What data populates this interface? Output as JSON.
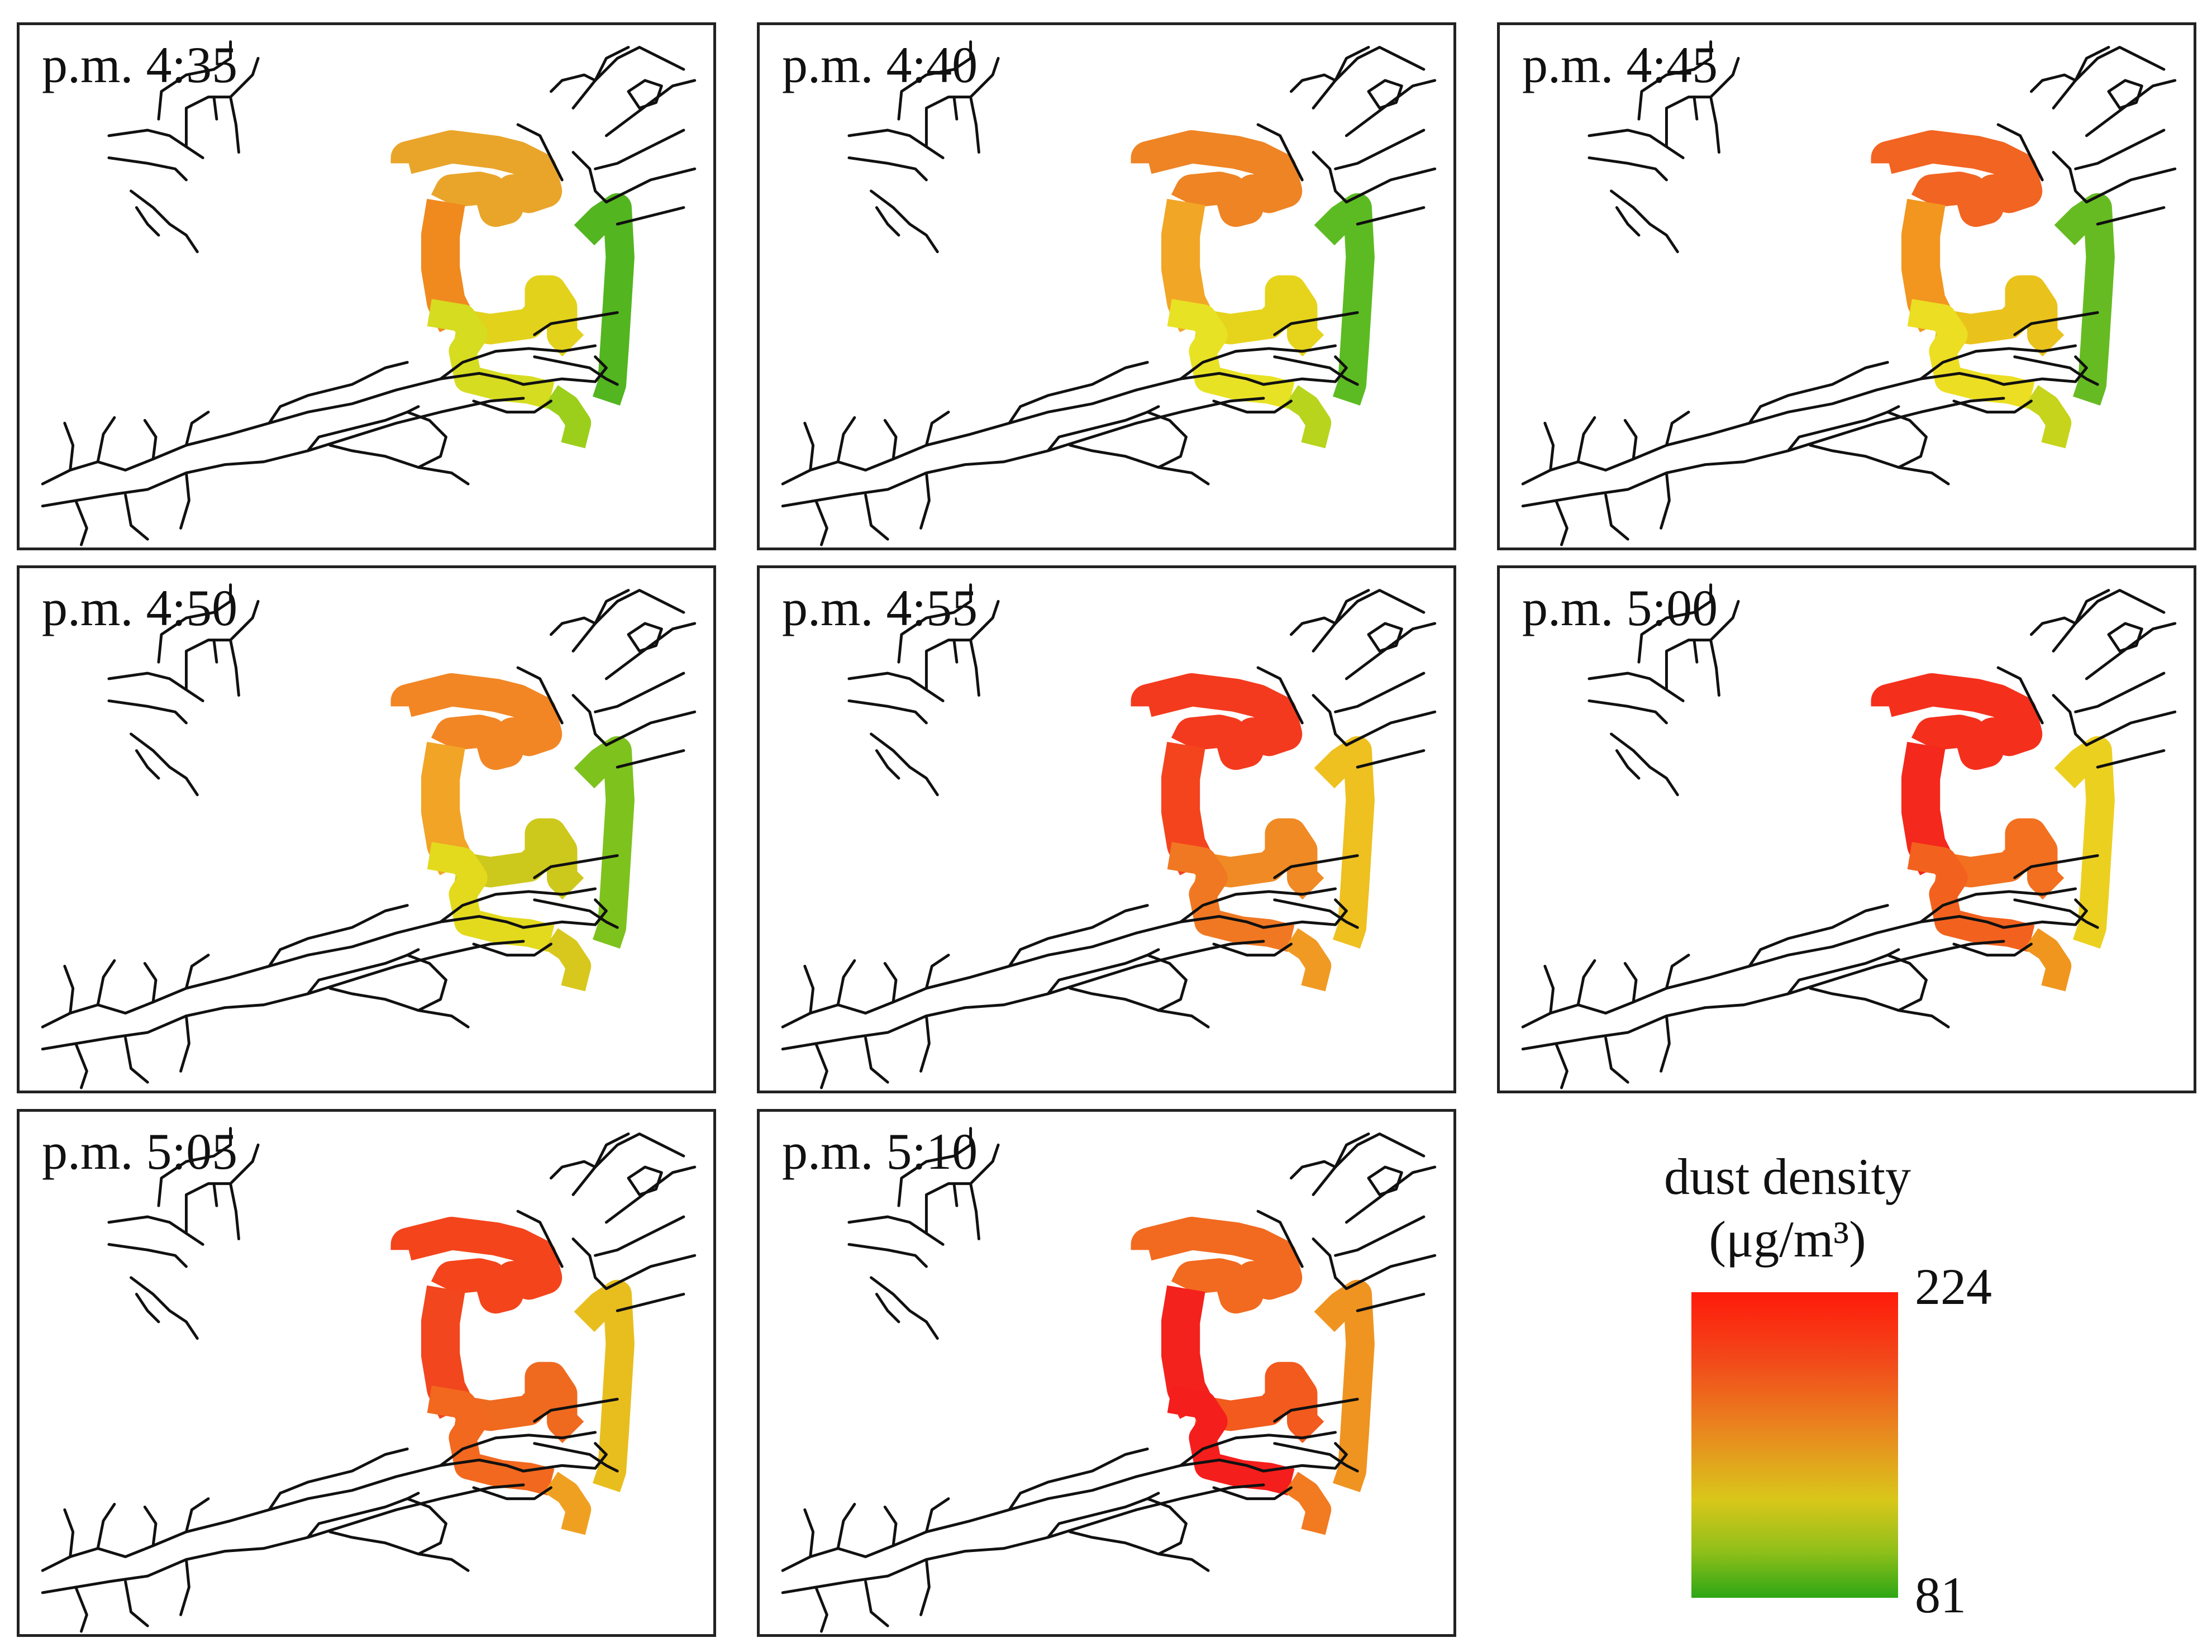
{
  "panels": [
    {
      "time": "p.m. 4:35",
      "colors": {
        "top": "#e9a52a",
        "left": "#f08a1f",
        "mid": "#e2d21c",
        "lowl": "#d6dc20",
        "lowr": "#9ccf1c",
        "right": "#53b520"
      }
    },
    {
      "time": "p.m. 4:40",
      "colors": {
        "top": "#ee8424",
        "left": "#f2a626",
        "mid": "#e6d41c",
        "lowl": "#e8e224",
        "lowr": "#b8d41c",
        "right": "#5cbb22"
      }
    },
    {
      "time": "p.m. 4:45",
      "colors": {
        "top": "#f26422",
        "left": "#f2961f",
        "mid": "#eac21c",
        "lowl": "#ecde22",
        "lowr": "#c6d41c",
        "right": "#66bb22"
      }
    },
    {
      "time": "p.m. 4:50",
      "colors": {
        "top": "#f28624",
        "left": "#f2a426",
        "mid": "#cdc81c",
        "lowl": "#e3da1e",
        "lowr": "#d8c81e",
        "right": "#7ec21e"
      }
    },
    {
      "time": "p.m. 4:55",
      "colors": {
        "top": "#f43a1e",
        "left": "#f4441e",
        "mid": "#f08a24",
        "lowl": "#f07822",
        "lowr": "#f09a24",
        "right": "#eec020"
      }
    },
    {
      "time": "p.m. 5:00",
      "colors": {
        "top": "#f4301c",
        "left": "#f4281c",
        "mid": "#f2701f",
        "lowl": "#f2621e",
        "lowr": "#f0961f",
        "right": "#ecd020"
      }
    },
    {
      "time": "p.m. 5:05",
      "colors": {
        "top": "#f4441c",
        "left": "#f2461e",
        "mid": "#ef6a1f",
        "lowl": "#f2681e",
        "lowr": "#f0a021",
        "right": "#e8be1e"
      }
    },
    {
      "time": "p.m. 5:10",
      "colors": {
        "top": "#f26a1f",
        "left": "#f4221c",
        "mid": "#f25a1e",
        "lowl": "#f41e1c",
        "lowr": "#f27a20",
        "right": "#ef9420"
      }
    }
  ],
  "legend": {
    "title_line1": "dust density",
    "title_line2": "(μg/m³)",
    "max": "224",
    "min": "81",
    "colors": {
      "max": "#ff1a0a",
      "mid": "#d9c71a",
      "min": "#2ea615"
    }
  }
}
